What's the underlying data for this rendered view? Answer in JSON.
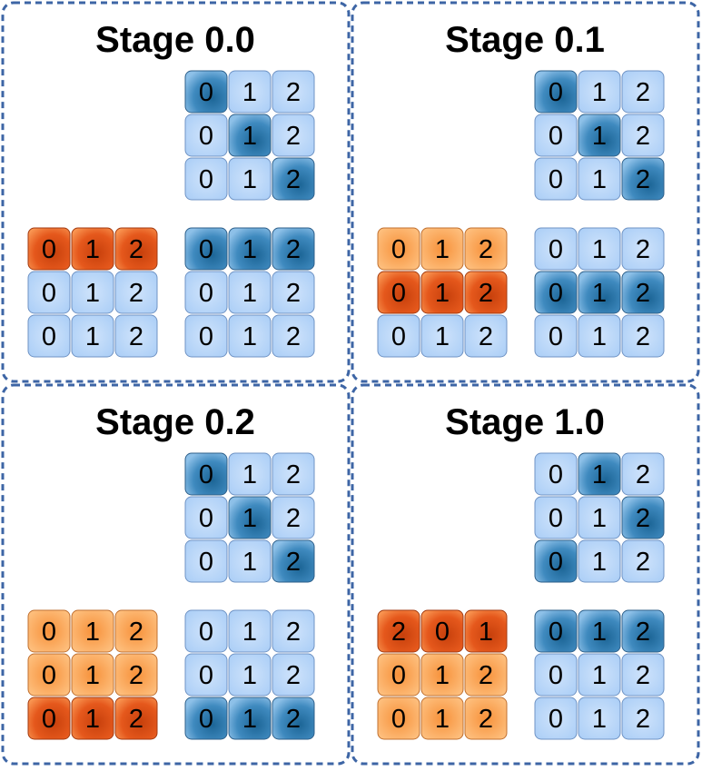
{
  "panels": [
    {
      "title": "Stage 0.0",
      "grids": [
        {
          "rows": [
            [
              "0",
              "1",
              "2"
            ],
            [
              "0",
              "1",
              "2"
            ],
            [
              "0",
              "1",
              "2"
            ]
          ],
          "shades": [
            [
              "dark",
              "light",
              "light"
            ],
            [
              "light",
              "dark",
              "light"
            ],
            [
              "light",
              "light",
              "dark"
            ]
          ]
        },
        {
          "rows": [
            [
              "0",
              "1",
              "2"
            ],
            [
              "0",
              "1",
              "2"
            ],
            [
              "0",
              "1",
              "2"
            ]
          ],
          "shades": [
            [
              "orange-dark",
              "orange-dark",
              "orange-dark"
            ],
            [
              "light",
              "light",
              "light"
            ],
            [
              "light",
              "light",
              "light"
            ]
          ]
        },
        {
          "rows": [
            [
              "0",
              "1",
              "2"
            ],
            [
              "0",
              "1",
              "2"
            ],
            [
              "0",
              "1",
              "2"
            ]
          ],
          "shades": [
            [
              "dark",
              "dark",
              "dark"
            ],
            [
              "light",
              "light",
              "light"
            ],
            [
              "light",
              "light",
              "light"
            ]
          ]
        }
      ]
    },
    {
      "title": "Stage 0.1",
      "grids": [
        {
          "rows": [
            [
              "0",
              "1",
              "2"
            ],
            [
              "0",
              "1",
              "2"
            ],
            [
              "0",
              "1",
              "2"
            ]
          ],
          "shades": [
            [
              "dark",
              "light",
              "light"
            ],
            [
              "light",
              "dark",
              "light"
            ],
            [
              "light",
              "light",
              "dark"
            ]
          ]
        },
        {
          "rows": [
            [
              "0",
              "1",
              "2"
            ],
            [
              "0",
              "1",
              "2"
            ],
            [
              "0",
              "1",
              "2"
            ]
          ],
          "shades": [
            [
              "orange",
              "orange",
              "orange"
            ],
            [
              "orange-dark",
              "orange-dark",
              "orange-dark"
            ],
            [
              "light",
              "light",
              "light"
            ]
          ]
        },
        {
          "rows": [
            [
              "0",
              "1",
              "2"
            ],
            [
              "0",
              "1",
              "2"
            ],
            [
              "0",
              "1",
              "2"
            ]
          ],
          "shades": [
            [
              "light",
              "light",
              "light"
            ],
            [
              "dark",
              "dark",
              "dark"
            ],
            [
              "light",
              "light",
              "light"
            ]
          ]
        }
      ]
    },
    {
      "title": "Stage 0.2",
      "grids": [
        {
          "rows": [
            [
              "0",
              "1",
              "2"
            ],
            [
              "0",
              "1",
              "2"
            ],
            [
              "0",
              "1",
              "2"
            ]
          ],
          "shades": [
            [
              "dark",
              "light",
              "light"
            ],
            [
              "light",
              "dark",
              "light"
            ],
            [
              "light",
              "light",
              "dark"
            ]
          ]
        },
        {
          "rows": [
            [
              "0",
              "1",
              "2"
            ],
            [
              "0",
              "1",
              "2"
            ],
            [
              "0",
              "1",
              "2"
            ]
          ],
          "shades": [
            [
              "orange",
              "orange",
              "orange"
            ],
            [
              "orange",
              "orange",
              "orange"
            ],
            [
              "orange-dark",
              "orange-dark",
              "orange-dark"
            ]
          ]
        },
        {
          "rows": [
            [
              "0",
              "1",
              "2"
            ],
            [
              "0",
              "1",
              "2"
            ],
            [
              "0",
              "1",
              "2"
            ]
          ],
          "shades": [
            [
              "light",
              "light",
              "light"
            ],
            [
              "light",
              "light",
              "light"
            ],
            [
              "dark",
              "dark",
              "dark"
            ]
          ]
        }
      ]
    },
    {
      "title": "Stage 1.0",
      "grids": [
        {
          "rows": [
            [
              "0",
              "1",
              "2"
            ],
            [
              "0",
              "1",
              "2"
            ],
            [
              "0",
              "1",
              "2"
            ]
          ],
          "shades": [
            [
              "light",
              "dark",
              "light"
            ],
            [
              "light",
              "light",
              "dark"
            ],
            [
              "dark",
              "light",
              "light"
            ]
          ]
        },
        {
          "rows": [
            [
              "2",
              "0",
              "1"
            ],
            [
              "0",
              "1",
              "2"
            ],
            [
              "0",
              "1",
              "2"
            ]
          ],
          "shades": [
            [
              "orange-dark",
              "orange-dark",
              "orange-dark"
            ],
            [
              "orange",
              "orange",
              "orange"
            ],
            [
              "orange",
              "orange",
              "orange"
            ]
          ]
        },
        {
          "rows": [
            [
              "0",
              "1",
              "2"
            ],
            [
              "0",
              "1",
              "2"
            ],
            [
              "0",
              "1",
              "2"
            ]
          ],
          "shades": [
            [
              "dark",
              "dark",
              "dark"
            ],
            [
              "light",
              "light",
              "light"
            ],
            [
              "light",
              "light",
              "light"
            ]
          ]
        }
      ]
    }
  ]
}
